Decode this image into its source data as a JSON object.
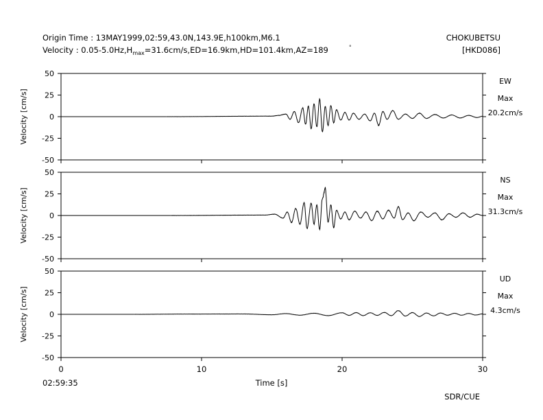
{
  "header": {
    "origin_line": "Origin Time : 13MAY1999,02:59,43.0N,143.9E,h100km,M6.1",
    "velocity_prefix": "Velocity : 0.05-5.0Hz,H",
    "velocity_sub": "max",
    "velocity_suffix": "=31.6cm/s,ED=16.9km,HD=101.4km,AZ=189",
    "station_name": "CHOKUBETSU",
    "station_code": "[HKD086]"
  },
  "footer": {
    "start_time": "02:59:35",
    "credit": "SDR/CUE"
  },
  "chart_data": {
    "type": "line",
    "xlabel": "Time [s]",
    "ylabel": "Velocity [cm/s]",
    "xlim": [
      0,
      30
    ],
    "xticks": [
      0,
      10,
      20,
      30
    ],
    "ylim": [
      -50,
      50
    ],
    "yticks": [
      50,
      25,
      0,
      -25,
      -50
    ],
    "grid": false,
    "panels": [
      {
        "component": "EW",
        "max_label": "Max",
        "max_value": "20.2cm/s",
        "onset": 7.5,
        "points": [
          [
            0,
            0
          ],
          [
            7.5,
            0
          ],
          [
            15.0,
            0.6
          ],
          [
            15.5,
            1.5
          ],
          [
            16.0,
            3.0
          ],
          [
            16.3,
            -3.0
          ],
          [
            16.6,
            6.0
          ],
          [
            16.9,
            -7.0
          ],
          [
            17.2,
            10.0
          ],
          [
            17.4,
            -9.0
          ],
          [
            17.6,
            12.0
          ],
          [
            17.8,
            -14.0
          ],
          [
            18.0,
            15.0
          ],
          [
            18.2,
            -12.0
          ],
          [
            18.4,
            20.2
          ],
          [
            18.6,
            -18.0
          ],
          [
            18.8,
            12.0
          ],
          [
            19.0,
            -10.0
          ],
          [
            19.2,
            13.0
          ],
          [
            19.4,
            -7.0
          ],
          [
            19.6,
            8.0
          ],
          [
            19.9,
            -4.0
          ],
          [
            20.2,
            5.0
          ],
          [
            20.5,
            -4.0
          ],
          [
            20.8,
            4.0
          ],
          [
            21.2,
            -3.0
          ],
          [
            21.6,
            3.0
          ],
          [
            22.0,
            -5.0
          ],
          [
            22.3,
            4.0
          ],
          [
            22.6,
            -10.0
          ],
          [
            22.9,
            6.0
          ],
          [
            23.2,
            -3.0
          ],
          [
            23.6,
            7.0
          ],
          [
            24.0,
            -3.0
          ],
          [
            24.5,
            3.0
          ],
          [
            25.0,
            -2.0
          ],
          [
            25.5,
            4.0
          ],
          [
            26.0,
            -2.0
          ],
          [
            26.6,
            2.5
          ],
          [
            27.2,
            -1.5
          ],
          [
            27.8,
            2.0
          ],
          [
            28.4,
            -1.5
          ],
          [
            29.0,
            1.5
          ],
          [
            29.6,
            -1.0
          ],
          [
            30.0,
            0.5
          ]
        ]
      },
      {
        "component": "NS",
        "max_label": "Max",
        "max_value": "31.3cm/s",
        "onset": 7.8,
        "points": [
          [
            0,
            0
          ],
          [
            7.8,
            0
          ],
          [
            14.5,
            0.5
          ],
          [
            15.2,
            1.5
          ],
          [
            15.8,
            -3.0
          ],
          [
            16.1,
            4.0
          ],
          [
            16.4,
            -8.0
          ],
          [
            16.7,
            8.0
          ],
          [
            17.0,
            -10.0
          ],
          [
            17.3,
            15.0
          ],
          [
            17.5,
            -15.0
          ],
          [
            17.8,
            14.0
          ],
          [
            18.0,
            -10.0
          ],
          [
            18.2,
            12.0
          ],
          [
            18.4,
            -16.0
          ],
          [
            18.6,
            20.0
          ],
          [
            18.8,
            31.3
          ],
          [
            19.0,
            -8.0
          ],
          [
            19.2,
            12.0
          ],
          [
            19.4,
            -14.0
          ],
          [
            19.6,
            6.0
          ],
          [
            19.9,
            -4.0
          ],
          [
            20.2,
            4.0
          ],
          [
            20.5,
            -5.0
          ],
          [
            20.9,
            5.0
          ],
          [
            21.3,
            -3.0
          ],
          [
            21.7,
            4.0
          ],
          [
            22.1,
            -6.0
          ],
          [
            22.5,
            5.0
          ],
          [
            22.9,
            -4.0
          ],
          [
            23.3,
            6.0
          ],
          [
            23.7,
            -3.0
          ],
          [
            24.0,
            10.0
          ],
          [
            24.3,
            -5.0
          ],
          [
            24.7,
            3.0
          ],
          [
            25.1,
            -6.0
          ],
          [
            25.6,
            4.0
          ],
          [
            26.1,
            -2.0
          ],
          [
            26.6,
            3.0
          ],
          [
            27.1,
            -5.0
          ],
          [
            27.6,
            2.0
          ],
          [
            28.1,
            -2.0
          ],
          [
            28.6,
            3.0
          ],
          [
            29.1,
            -2.0
          ],
          [
            29.6,
            1.5
          ],
          [
            30.0,
            0
          ]
        ]
      },
      {
        "component": "UD",
        "max_label": "Max",
        "max_value": "4.3cm/s",
        "onset": 5.2,
        "points": [
          [
            0,
            0
          ],
          [
            5.2,
            0
          ],
          [
            9.0,
            0.3
          ],
          [
            13.0,
            0.4
          ],
          [
            15.0,
            -0.5
          ],
          [
            16.0,
            0.8
          ],
          [
            17.0,
            -1.0
          ],
          [
            18.0,
            1.2
          ],
          [
            19.0,
            -1.5
          ],
          [
            20.0,
            1.8
          ],
          [
            20.5,
            -1.2
          ],
          [
            21.0,
            2.0
          ],
          [
            21.5,
            -1.5
          ],
          [
            22.0,
            1.8
          ],
          [
            22.5,
            -1.2
          ],
          [
            23.0,
            2.2
          ],
          [
            23.5,
            -1.5
          ],
          [
            24.0,
            4.3
          ],
          [
            24.5,
            -2.0
          ],
          [
            25.0,
            2.0
          ],
          [
            25.5,
            -2.5
          ],
          [
            26.0,
            1.5
          ],
          [
            26.5,
            -1.8
          ],
          [
            27.0,
            1.5
          ],
          [
            27.5,
            -1.0
          ],
          [
            28.0,
            1.2
          ],
          [
            28.5,
            -1.0
          ],
          [
            29.0,
            1.0
          ],
          [
            29.5,
            -0.8
          ],
          [
            30.0,
            0.5
          ]
        ]
      }
    ]
  }
}
